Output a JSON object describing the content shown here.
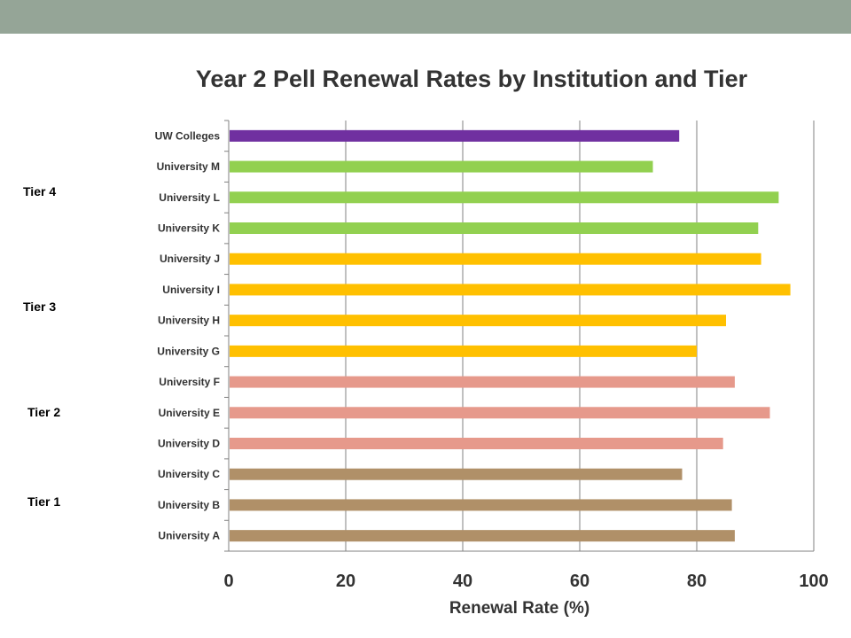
{
  "colors": {
    "top_bar": "#95a597",
    "uw_colleges": "#7030a0",
    "tier4": "#92d050",
    "tier3": "#ffc000",
    "tier2": "#e6998b",
    "tier1": "#b09068",
    "grid": "#808080",
    "text": "#333333"
  },
  "tier_labels": [
    "Tier 4",
    "Tier 3",
    "Tier 2",
    "Tier 1"
  ],
  "chart_data": {
    "type": "bar",
    "orientation": "horizontal",
    "title": "Year 2 Pell Renewal Rates by Institution and Tier",
    "xlabel": "Renewal Rate (%)",
    "ylabel": "",
    "xlim": [
      0,
      100
    ],
    "xticks": [
      "0",
      "20",
      "40",
      "60",
      "80",
      "100"
    ],
    "grid": "vertical",
    "legend": "none",
    "categories": [
      "UW Colleges",
      "University M",
      "University L",
      "University K",
      "University J",
      "University I",
      "University H",
      "University G",
      "University F",
      "University E",
      "University D",
      "University C",
      "University B",
      "University A"
    ],
    "values": [
      77,
      72.5,
      94,
      90.5,
      91,
      96,
      85,
      80,
      86.5,
      92.5,
      84.5,
      77.5,
      86,
      86.5
    ],
    "groups": [
      "uw",
      "tier4",
      "tier4",
      "tier4",
      "tier3",
      "tier3",
      "tier3",
      "tier3",
      "tier2",
      "tier2",
      "tier2",
      "tier1",
      "tier1",
      "tier1"
    ]
  }
}
